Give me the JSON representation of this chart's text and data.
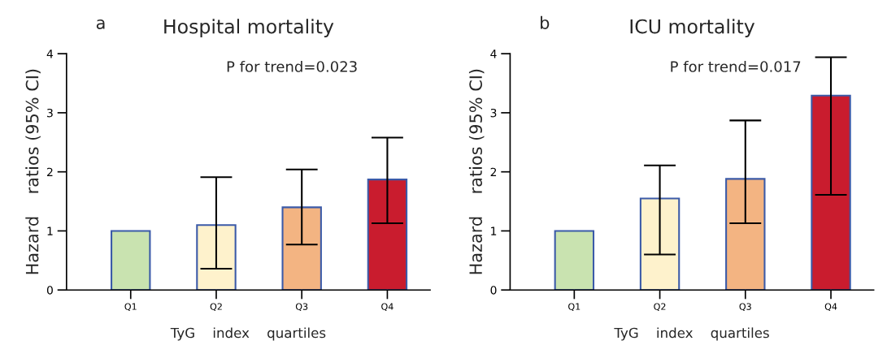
{
  "chart_data": [
    {
      "type": "bar",
      "title": "Hospital mortality",
      "xlabel": "TyG    index    quartiles",
      "ylabel": "Hazard    ratios (95% CI)",
      "annotations": [
        "a",
        "P for trend=0.023"
      ],
      "categories": [
        "Q1",
        "Q2",
        "Q3",
        "Q4"
      ],
      "values": [
        1.0,
        1.1,
        1.4,
        1.87
      ],
      "colors": [
        "#c9e3b0",
        "#fef2cc",
        "#f3b482",
        "#c91c2e"
      ],
      "errors": [
        null,
        [
          0.36,
          1.91
        ],
        [
          0.77,
          2.04
        ],
        [
          1.13,
          2.58
        ]
      ],
      "ylim": [
        0,
        4
      ],
      "yticks": [
        0,
        1,
        2,
        3,
        4
      ],
      "grid": false,
      "legend": false
    },
    {
      "type": "bar",
      "title": "ICU mortality",
      "xlabel": "TyG    index    quartiles",
      "ylabel": "Hazard    ratios (95% CI)",
      "annotations": [
        "b",
        "P for trend=0.017"
      ],
      "categories": [
        "Q1",
        "Q2",
        "Q3",
        "Q4"
      ],
      "values": [
        1.0,
        1.55,
        1.88,
        3.29
      ],
      "colors": [
        "#c9e3b0",
        "#fef2cc",
        "#f3b482",
        "#c91c2e"
      ],
      "errors": [
        null,
        [
          0.6,
          2.11
        ],
        [
          1.13,
          2.87
        ],
        [
          1.61,
          3.94
        ]
      ],
      "ylim": [
        0,
        4
      ],
      "yticks": [
        0,
        1,
        2,
        3,
        4
      ],
      "grid": false,
      "legend": false
    }
  ]
}
